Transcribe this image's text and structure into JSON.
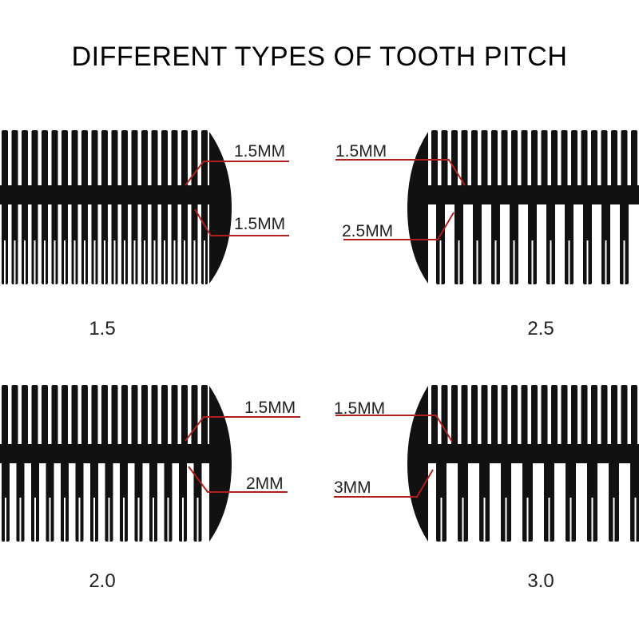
{
  "title": "DIFFERENT TYPES OF TOOTH PITCH",
  "colors": {
    "comb": "#111111",
    "leader": "#b01e1e",
    "background": "#ffffff"
  },
  "panels": [
    {
      "id": "p15",
      "pitch_label": "1.5",
      "fine_label": "1.5MM",
      "wide_label": "1.5MM"
    },
    {
      "id": "p25",
      "pitch_label": "2.5",
      "fine_label": "1.5MM",
      "wide_label": "2.5MM"
    },
    {
      "id": "p20",
      "pitch_label": "2.0",
      "fine_label": "1.5MM",
      "wide_label": "2MM"
    },
    {
      "id": "p30",
      "pitch_label": "3.0",
      "fine_label": "1.5MM",
      "wide_label": "3MM"
    }
  ]
}
